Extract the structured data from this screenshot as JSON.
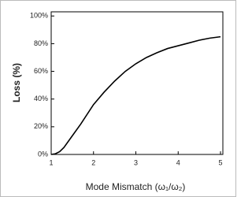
{
  "chart_data": {
    "type": "line",
    "x_label": "Mode Mismatch (ω₁/ω₂)",
    "y_label": "Loss (%)",
    "x": [
      1,
      1.1,
      1.2,
      1.3,
      1.5,
      1.7,
      2,
      2.25,
      2.5,
      2.75,
      3,
      3.25,
      3.5,
      3.75,
      4,
      4.25,
      4.5,
      4.75,
      5
    ],
    "series": [
      {
        "color": "#000000",
        "values": [
          0,
          0.5,
          2,
          5,
          13.5,
          22,
          36,
          45,
          53,
          60,
          65.5,
          70,
          73.5,
          76.5,
          78.5,
          80.5,
          82.5,
          84,
          85
        ]
      }
    ],
    "xlim": [
      1,
      5
    ],
    "ylim": [
      0,
      103
    ],
    "xticks": [
      1,
      2,
      3,
      4,
      5
    ],
    "yticks": [
      {
        "value": 0,
        "label": "0%"
      },
      {
        "value": 20,
        "label": "20%"
      },
      {
        "value": 40,
        "label": "40%"
      },
      {
        "value": 60,
        "label": "60%"
      },
      {
        "value": 80,
        "label": "80%"
      },
      {
        "value": 100,
        "label": "100%"
      }
    ]
  }
}
